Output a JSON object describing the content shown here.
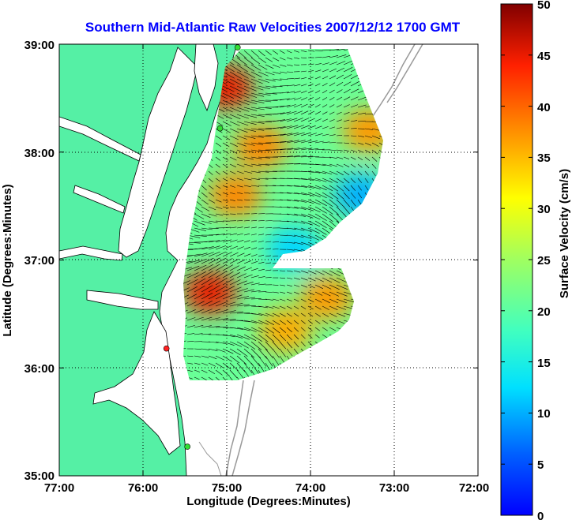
{
  "chart_data": {
    "type": "heatmap",
    "title": "Southern Mid-Atlantic Raw Velocities 2007/12/12 1700 GMT",
    "xlabel": "Longitude (Degrees:Minutes)",
    "ylabel": "Latitude (Degrees:Minutes)",
    "x_ticks": [
      "77:00",
      "76:00",
      "75:00",
      "74:00",
      "73:00",
      "72:00"
    ],
    "x_tick_values": [
      -77,
      -76,
      -75,
      -74,
      -73,
      -72
    ],
    "y_ticks": [
      "39:00",
      "38:00",
      "37:00",
      "36:00",
      "35:00"
    ],
    "y_tick_values": [
      39,
      38,
      37,
      36,
      35
    ],
    "xlim": [
      -77,
      -72
    ],
    "ylim": [
      35,
      39
    ],
    "grid": true,
    "colorbar": {
      "label": "Surface Velocity (cm/s)",
      "range": [
        0,
        50
      ],
      "ticks": [
        "50",
        "45",
        "40",
        "35",
        "30",
        "25",
        "20",
        "15",
        "10",
        "5",
        "0"
      ],
      "tick_values": [
        50,
        45,
        40,
        35,
        30,
        25,
        20,
        15,
        10,
        5,
        0
      ],
      "colormap": "jet"
    },
    "velocity_hotspots": [
      {
        "lon": -74.6,
        "lat": 38.05,
        "speed": 38
      },
      {
        "lon": -73.3,
        "lat": 38.2,
        "speed": 37
      },
      {
        "lon": -75.0,
        "lat": 38.6,
        "speed": 45
      },
      {
        "lon": -74.9,
        "lat": 37.6,
        "speed": 38
      },
      {
        "lon": -75.2,
        "lat": 36.7,
        "speed": 45
      },
      {
        "lon": -74.3,
        "lat": 36.35,
        "speed": 36
      },
      {
        "lon": -73.8,
        "lat": 36.65,
        "speed": 37
      },
      {
        "lon": -73.4,
        "lat": 37.6,
        "speed": 10
      },
      {
        "lon": -74.2,
        "lat": 37.1,
        "speed": 12
      }
    ],
    "stations": [
      {
        "lon": -74.87,
        "lat": 38.97,
        "color": "#33dd33"
      },
      {
        "lon": -75.08,
        "lat": 38.22,
        "color": "#33dd33"
      },
      {
        "lon": -75.72,
        "lat": 36.18,
        "color": "#ff2222"
      },
      {
        "lon": -75.47,
        "lat": 35.27,
        "color": "#33dd33"
      }
    ]
  },
  "colors": {
    "land": "#55f0a5",
    "water": "#ffffff",
    "title": "#0000ff",
    "arrows": "#000000"
  }
}
